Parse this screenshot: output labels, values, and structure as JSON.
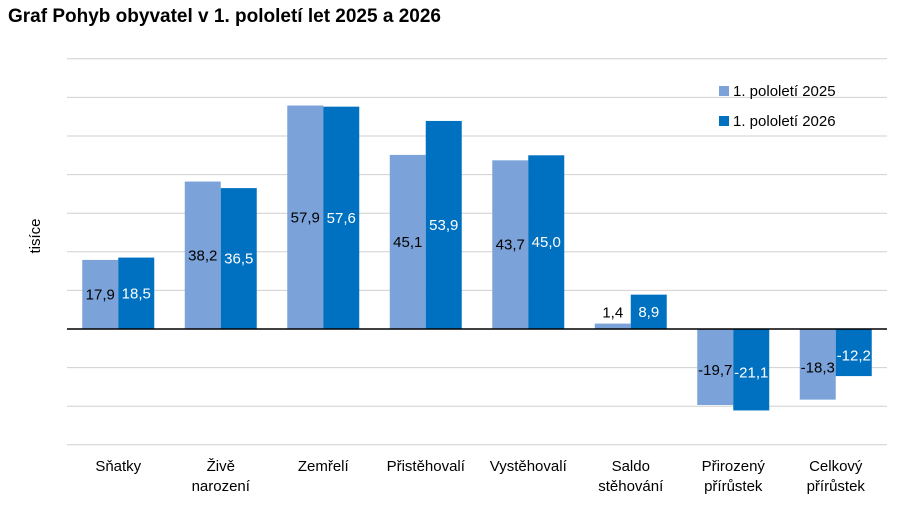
{
  "chart_data": {
    "type": "bar",
    "title": "Graf Pohyb obyvatel v 1. pololetí let 2025 a 2026",
    "ylabel": "tisíce",
    "xlabel": "",
    "ylim": [
      -30,
      70
    ],
    "grid": true,
    "legend_position": "top-right",
    "categories": [
      [
        "Sňatky"
      ],
      [
        "Živě",
        "narození"
      ],
      [
        "Zemřelí"
      ],
      [
        "Přistěhovalí"
      ],
      [
        "Vystěhovalí"
      ],
      [
        "Saldo",
        "stěhování"
      ],
      [
        "Přirozený",
        "přírůstek"
      ],
      [
        "Celkový",
        "přírůstek"
      ]
    ],
    "series": [
      {
        "name": "1. pololetí 2025",
        "color": "#7ba3d9",
        "values": [
          17.9,
          38.2,
          57.9,
          45.1,
          43.7,
          1.4,
          -19.7,
          -18.3
        ],
        "labels": [
          "17,9",
          "38,2",
          "57,9",
          "45,1",
          "43,7",
          "1,4",
          "-19,7",
          "-18,3"
        ],
        "label_color": "#000000"
      },
      {
        "name": "1. pololetí 2026",
        "color": "#0070c0",
        "values": [
          18.5,
          36.5,
          57.6,
          53.9,
          45.0,
          8.9,
          -21.1,
          -12.2
        ],
        "labels": [
          "18,5",
          "36,5",
          "57,6",
          "53,9",
          "45,0",
          "8,9",
          "-21,1",
          "-12,2"
        ],
        "label_color": "#ffffff"
      }
    ]
  }
}
